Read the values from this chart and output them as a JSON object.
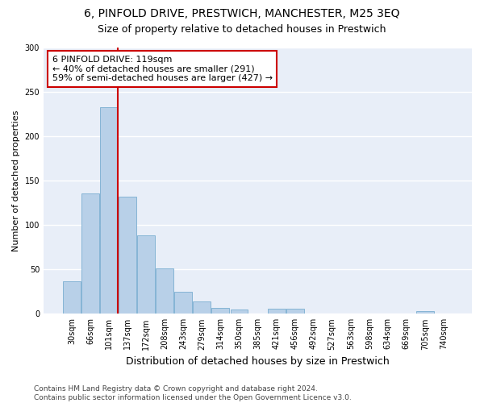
{
  "title": "6, PINFOLD DRIVE, PRESTWICH, MANCHESTER, M25 3EQ",
  "subtitle": "Size of property relative to detached houses in Prestwich",
  "xlabel": "Distribution of detached houses by size in Prestwich",
  "ylabel": "Number of detached properties",
  "categories": [
    "30sqm",
    "66sqm",
    "101sqm",
    "137sqm",
    "172sqm",
    "208sqm",
    "243sqm",
    "279sqm",
    "314sqm",
    "350sqm",
    "385sqm",
    "421sqm",
    "456sqm",
    "492sqm",
    "527sqm",
    "563sqm",
    "598sqm",
    "634sqm",
    "669sqm",
    "705sqm",
    "740sqm"
  ],
  "values": [
    37,
    136,
    233,
    132,
    88,
    51,
    25,
    14,
    7,
    5,
    0,
    6,
    6,
    0,
    0,
    0,
    0,
    0,
    0,
    3,
    0
  ],
  "bar_color": "#b8d0e8",
  "bar_edge_color": "#7aaed0",
  "vline_color": "#cc0000",
  "vline_x_index": 2,
  "annotation_text": "6 PINFOLD DRIVE: 119sqm\n← 40% of detached houses are smaller (291)\n59% of semi-detached houses are larger (427) →",
  "annotation_box_color": "#ffffff",
  "annotation_box_edge_color": "#cc0000",
  "ylim": [
    0,
    300
  ],
  "yticks": [
    0,
    50,
    100,
    150,
    200,
    250,
    300
  ],
  "axes_bg_color": "#e8eef8",
  "fig_bg_color": "#ffffff",
  "grid_color": "#ffffff",
  "title_fontsize": 10,
  "subtitle_fontsize": 9,
  "xlabel_fontsize": 9,
  "ylabel_fontsize": 8,
  "tick_fontsize": 7,
  "annotation_fontsize": 8,
  "footer_fontsize": 6.5,
  "footer": "Contains HM Land Registry data © Crown copyright and database right 2024.\nContains public sector information licensed under the Open Government Licence v3.0."
}
